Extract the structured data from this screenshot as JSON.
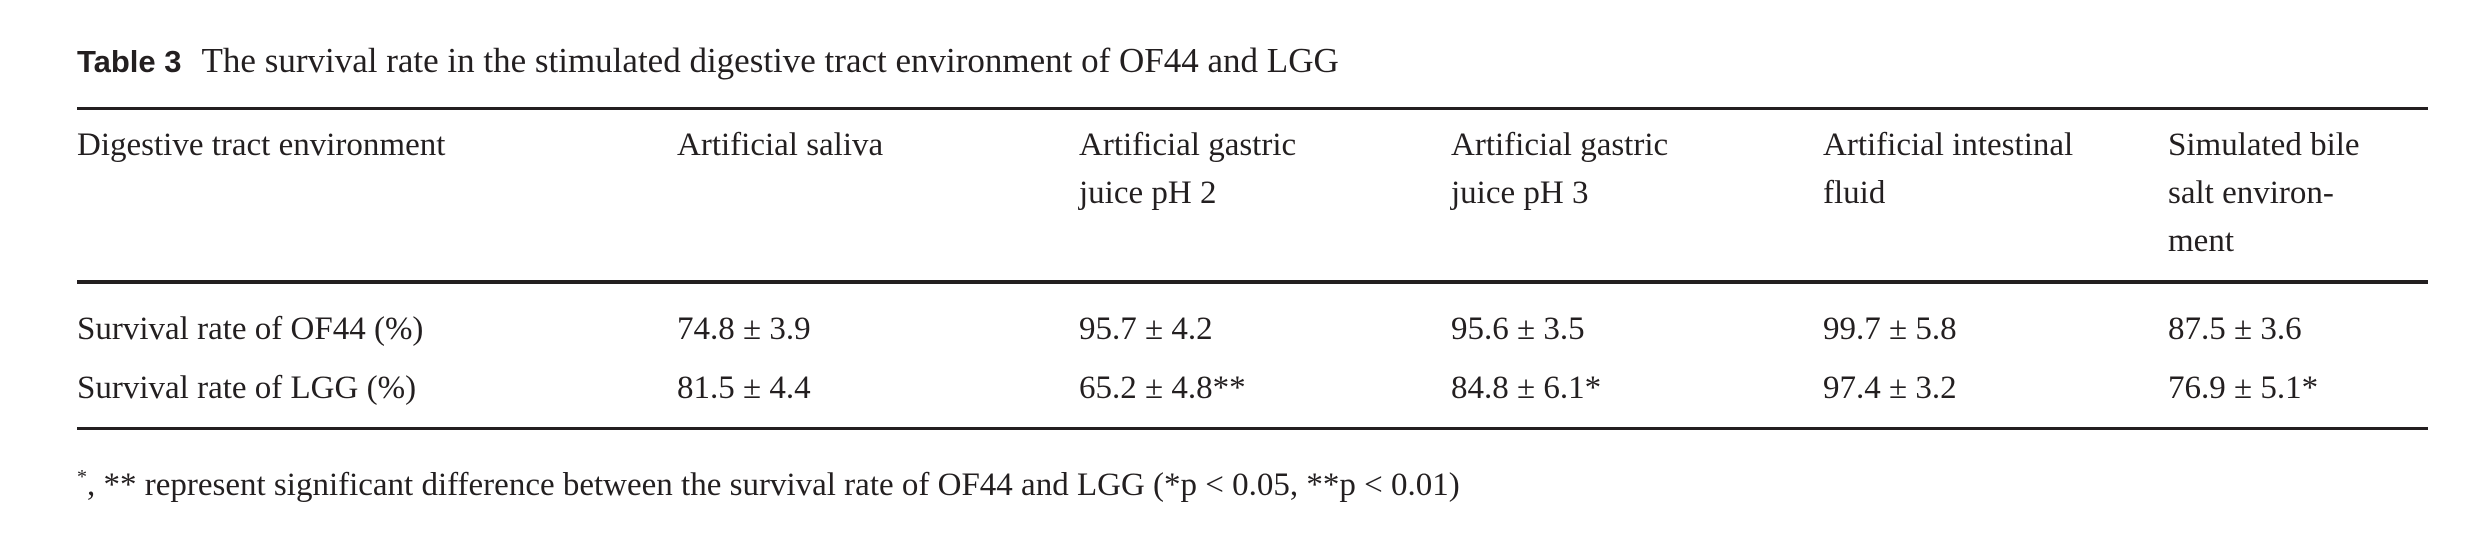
{
  "table_title": {
    "label": "Table 3",
    "text": "The survival rate in the stimulated digestive tract environment of OF44 and LGG"
  },
  "table": {
    "header": [
      [
        "Digestive tract environment"
      ],
      [
        "Artificial saliva"
      ],
      [
        "Artificial gastric",
        "juice pH 2"
      ],
      [
        "Artificial gastric",
        "juice pH 3"
      ],
      [
        "Artificial intestinal",
        "fluid"
      ],
      [
        "Simulated bile",
        "salt environ-",
        "ment"
      ]
    ],
    "rows": [
      [
        "Survival rate of OF44 (%)",
        "74.8 ± 3.9",
        "95.7 ± 4.2",
        "95.6 ± 3.5",
        "99.7 ± 5.8",
        "87.5 ± 3.6"
      ],
      [
        "Survival rate of LGG (%)",
        "81.5 ± 4.4",
        "65.2 ± 4.8**",
        "84.8 ± 6.1*",
        "97.4 ± 3.2",
        "76.9 ± 5.1*"
      ]
    ]
  },
  "footnote": {
    "mark": "*",
    "text": ", ** represent significant difference between the survival rate of OF44 and LGG (*p < 0.05, **p < 0.01)"
  }
}
